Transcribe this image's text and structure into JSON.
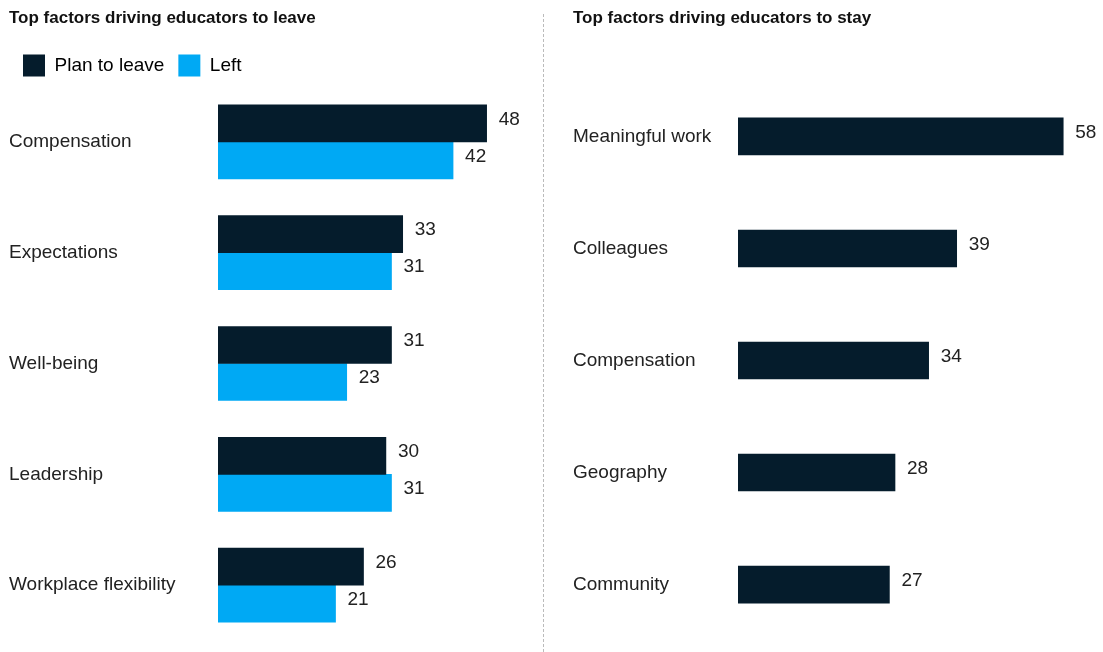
{
  "chart_data": [
    {
      "type": "bar",
      "orientation": "horizontal",
      "title": "Top factors driving educators to leave",
      "categories": [
        "Compensation",
        "Expectations",
        "Well-being",
        "Leadership",
        "Workplace flexibility"
      ],
      "series": [
        {
          "name": "Plan to leave",
          "color": "#051c2c",
          "values": [
            48,
            33,
            31,
            30,
            26
          ]
        },
        {
          "name": "Left",
          "color": "#00a9f4",
          "values": [
            42,
            31,
            23,
            31,
            21
          ]
        }
      ],
      "data_labels": true,
      "legend": "top left",
      "grid": false,
      "tick_labels": "y"
    },
    {
      "type": "bar",
      "orientation": "horizontal",
      "title": "Top factors driving educators to stay",
      "categories": [
        "Meaningful work",
        "Colleagues",
        "Compensation",
        "Geography",
        "Community"
      ],
      "values": [
        58,
        39,
        34,
        28,
        27
      ],
      "color": "#051c2c",
      "data_labels": true,
      "legend": false,
      "grid": false,
      "tick_labels": "y"
    }
  ]
}
